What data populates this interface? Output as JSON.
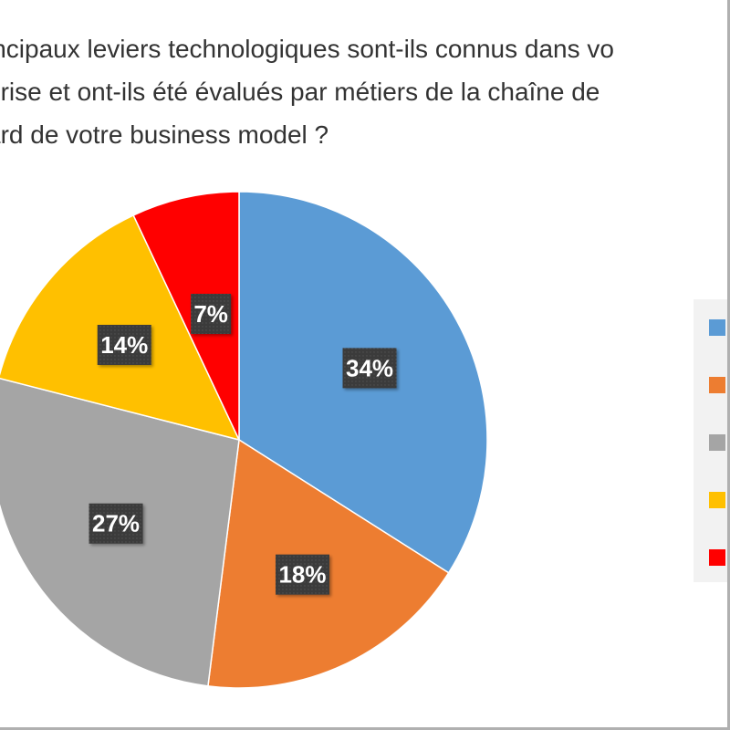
{
  "title": {
    "lines": [
      "incipaux leviers technologiques sont-ils connus dans vo",
      "prise et ont-ils été évalués par métiers de la chaîne de",
      "ard de votre business model ?"
    ]
  },
  "colors": {
    "background": "#ffffff",
    "label_box": "#404040",
    "label_text": "#ffffff",
    "legend_bg": "#f2f2f2"
  },
  "chart_data": {
    "type": "pie",
    "title": "incipaux leviers technologiques sont-ils connus dans vo prise et ont-ils été évalués par métiers de la chaîne de ard de votre business model ?",
    "values": [
      34,
      18,
      27,
      14,
      7
    ],
    "labels": [
      "34%",
      "18%",
      "27%",
      "14%",
      "7%"
    ],
    "colors": [
      "#5B9BD5",
      "#ED7D31",
      "#A5A5A5",
      "#FFC000",
      "#FF0000"
    ],
    "start_angle": "12 o'clock",
    "direction": "clockwise",
    "legend_position": "right",
    "legend_text_visible": false
  }
}
